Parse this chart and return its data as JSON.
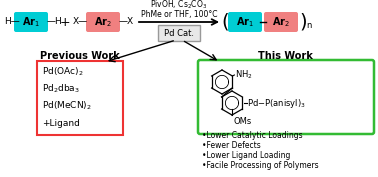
{
  "bg_color": "#ffffff",
  "cyan_color": "#00cdd4",
  "salmon_color": "#f08080",
  "red_box_color": "#ee3333",
  "green_box_color": "#33bb33",
  "gray_box_color": "#999999",
  "reaction_top_text": "PivOH, Cs$_2$CO$_3$",
  "reaction_bot_text": "PhMe or THF, 100°C",
  "pd_cat_text": "Pd Cat.",
  "previous_work_title": "Previous Work",
  "previous_work_lines": [
    "Pd(OAc)$_2$",
    "Pd$_2$dba$_3$",
    "Pd(MeCN)$_2$",
    "+Ligand"
  ],
  "this_work_title": "This Work",
  "this_work_lines": [
    "•Lower Catalytic Loadings",
    "•Fewer Defects",
    "•Lower Ligand Loading",
    "•Facile Processing of Polymers"
  ],
  "ar1_label": "Ar$_1$",
  "ar2_label": "Ar$_2$"
}
